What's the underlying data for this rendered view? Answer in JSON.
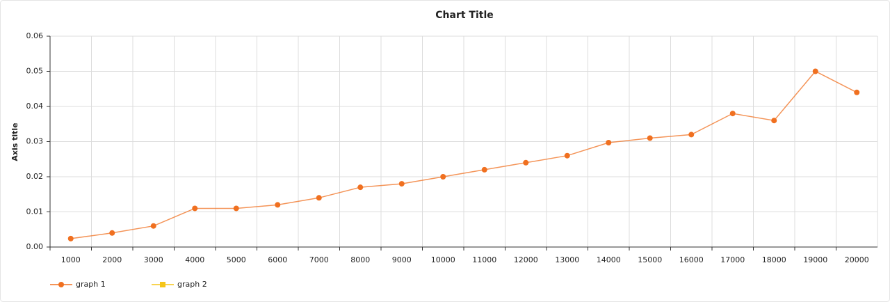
{
  "chart_data": {
    "type": "line",
    "title": "Chart Title",
    "y_label": "Axis title",
    "categories": [
      "1000",
      "2000",
      "3000",
      "4000",
      "5000",
      "6000",
      "7000",
      "8000",
      "9000",
      "10000",
      "11000",
      "12000",
      "13000",
      "14000",
      "15000",
      "16000",
      "17000",
      "18000",
      "19000",
      "20000"
    ],
    "series": [
      {
        "name": "graph 1",
        "color": "#f07020",
        "values": [
          0.0024,
          0.004,
          0.006,
          0.011,
          0.011,
          0.012,
          0.014,
          0.017,
          0.018,
          0.02,
          0.022,
          0.024,
          0.026,
          0.0297,
          0.031,
          0.032,
          0.038,
          0.036,
          0.05,
          0.044
        ]
      },
      {
        "name": "graph 2",
        "color": "#f5c518",
        "values": [
          null,
          null,
          null,
          null,
          null,
          null,
          null,
          null,
          null,
          null,
          null,
          null,
          null,
          null,
          null,
          null,
          null,
          null,
          null,
          null
        ]
      }
    ],
    "ylim": [
      0,
      0.06
    ],
    "yticks": [
      {
        "value": 0,
        "label": "0.00"
      },
      0.01,
      0.02,
      0.03,
      0.04,
      0.05,
      0.06
    ],
    "grid": true
  }
}
